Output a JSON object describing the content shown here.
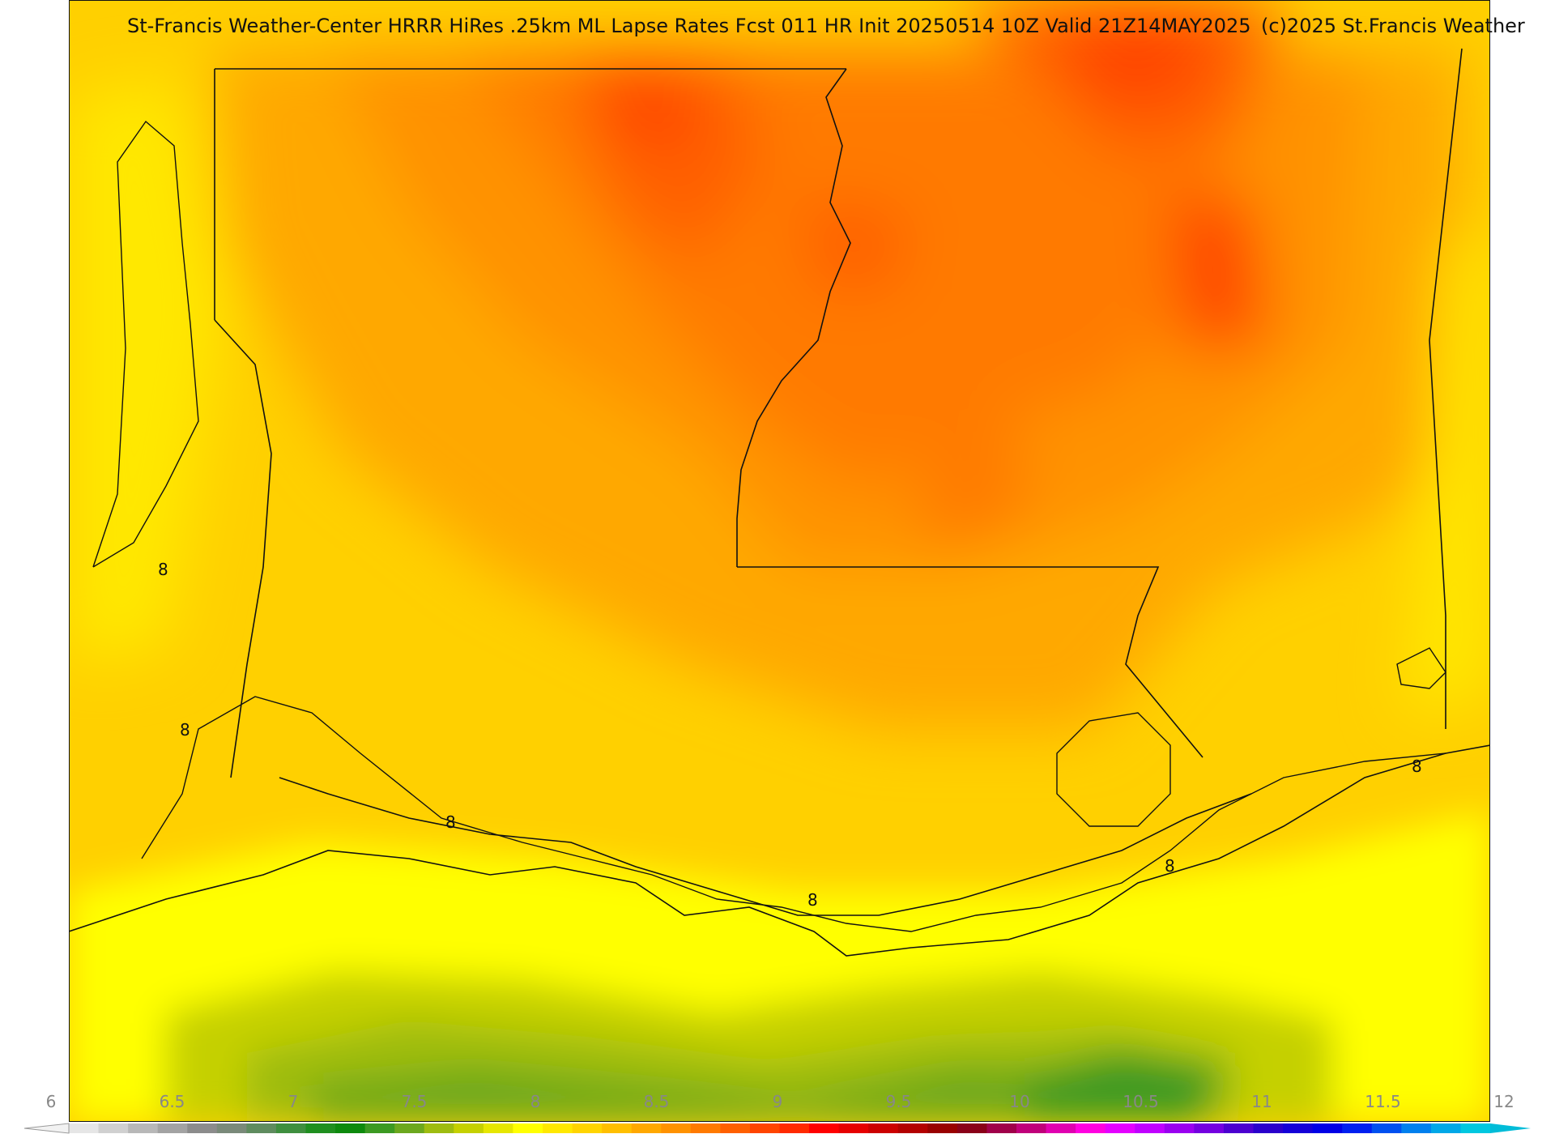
{
  "header": {
    "title": "St-Francis Weather-Center HRRR HiRes .25km ML Lapse Rates  Fcst 011 HR Init 20250514 10Z  Valid 21Z14MAY2025",
    "copyright": "(c)2025 St.Francis Weather"
  },
  "map": {
    "contour_label": "8"
  },
  "legend": {
    "ticks": [
      "6",
      "6.5",
      "7",
      "7.5",
      "8",
      "8.5",
      "9",
      "9.5",
      "10",
      "10.5",
      "11",
      "11.5",
      "12"
    ],
    "colors": [
      "#e6e6e6",
      "#d0d0d0",
      "#b8b8b8",
      "#a3a3a3",
      "#8c8c8c",
      "#7a8a7a",
      "#5f8c5f",
      "#3f8f3f",
      "#1f8f1f",
      "#0d8a0d",
      "#3c9a22",
      "#6ca81e",
      "#9ebc10",
      "#c5d000",
      "#e6e600",
      "#ffff00",
      "#ffe800",
      "#ffd400",
      "#ffbf00",
      "#ffa800",
      "#ff9200",
      "#ff7a00",
      "#ff6000",
      "#ff4500",
      "#ff2a00",
      "#ff0000",
      "#e60000",
      "#cc0000",
      "#b30000",
      "#990000",
      "#8a0018",
      "#a0004a",
      "#c0007a",
      "#e000b0",
      "#ff00e0",
      "#e400ff",
      "#c000ff",
      "#9a00f0",
      "#7400e0",
      "#4c00d0",
      "#2a00cc",
      "#1400d8",
      "#0000e6",
      "#0020f0",
      "#0050f0",
      "#0080ee",
      "#00a8e8",
      "#00c8e0"
    ]
  }
}
